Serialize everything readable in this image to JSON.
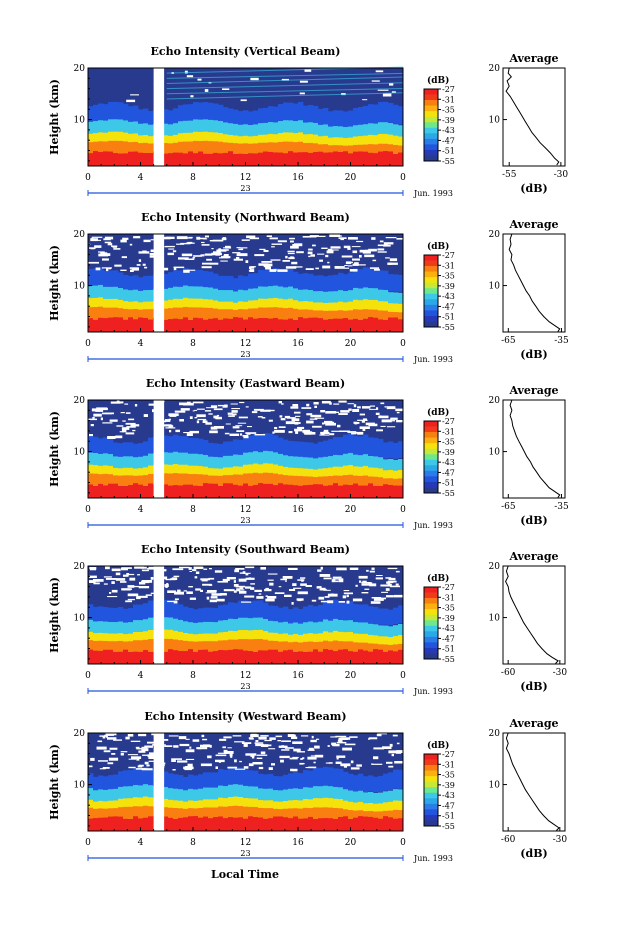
{
  "figure": {
    "xlabel": "Local Time",
    "date_label": "Jun. 1993",
    "date_day": "23",
    "ylabel": "Height (km)",
    "colorbar_unit": "(dB)",
    "avg_title": "Average",
    "avg_xlabel": "(dB)",
    "colors": {
      "red": "#ee2020",
      "orange": "#f98010",
      "yellow": "#f5e10c",
      "cyan": "#3ec8e8",
      "blue": "#2255dd",
      "navy": "#283a8e"
    }
  },
  "chart_data": [
    {
      "type": "heatmap",
      "title": "Echo Intensity (Vertical Beam)",
      "x": {
        "label": "Local Time",
        "ticks": [
          "0",
          "4",
          "8",
          "12",
          "16",
          "20",
          "0"
        ],
        "range": [
          0,
          24
        ],
        "gap": [
          5,
          5.8
        ]
      },
      "y": {
        "label": "Height (km)",
        "ticks": [
          "20",
          "10"
        ],
        "range": [
          1,
          20
        ]
      },
      "colorbar": {
        "unit": "(dB)",
        "ticks": [
          "-27",
          "-31",
          "-35",
          "-39",
          "-43",
          "-47",
          "-51",
          "-55"
        ],
        "range": [
          -55,
          -27
        ]
      },
      "average_profile": {
        "title": "Average",
        "xlabel": "(dB)",
        "xticks": [
          "-55",
          "-30"
        ],
        "xlim": [
          -58,
          -28
        ],
        "yticks": [
          "20",
          "10"
        ],
        "points": [
          [
            -55,
            20
          ],
          [
            -55.5,
            19
          ],
          [
            -54,
            18.3
          ],
          [
            -56,
            17.5
          ],
          [
            -55,
            16.5
          ],
          [
            -56.5,
            15.5
          ],
          [
            -54.5,
            14.5
          ],
          [
            -53,
            13.5
          ],
          [
            -51.5,
            12.5
          ],
          [
            -50,
            11.5
          ],
          [
            -48.5,
            10.5
          ],
          [
            -47,
            9.5
          ],
          [
            -45.5,
            8.5
          ],
          [
            -44,
            7.5
          ],
          [
            -42,
            6.5
          ],
          [
            -40,
            5.5
          ],
          [
            -37.5,
            4.5
          ],
          [
            -35,
            3.5
          ],
          [
            -33,
            2.5
          ],
          [
            -31,
            1.8
          ],
          [
            -32,
            1.2
          ]
        ]
      }
    },
    {
      "type": "heatmap",
      "title": "Echo Intensity (Northward Beam)",
      "x": {
        "label": "Local Time",
        "ticks": [
          "0",
          "4",
          "8",
          "12",
          "16",
          "20",
          "0"
        ],
        "range": [
          0,
          24
        ],
        "gap": [
          5,
          5.8
        ]
      },
      "y": {
        "label": "Height (km)",
        "ticks": [
          "20",
          "10"
        ],
        "range": [
          1,
          20
        ]
      },
      "colorbar": {
        "unit": "(dB)",
        "ticks": [
          "-27",
          "-31",
          "-35",
          "-39",
          "-43",
          "-47",
          "-51",
          "-55"
        ],
        "range": [
          -55,
          -27
        ]
      },
      "average_profile": {
        "title": "Average",
        "xlabel": "(dB)",
        "xticks": [
          "-65",
          "-35"
        ],
        "xlim": [
          -68,
          -33
        ],
        "yticks": [
          "20",
          "10"
        ],
        "points": [
          [
            -63,
            20
          ],
          [
            -64,
            19
          ],
          [
            -63.5,
            18
          ],
          [
            -64.5,
            17
          ],
          [
            -63,
            16
          ],
          [
            -63.5,
            15
          ],
          [
            -62,
            14
          ],
          [
            -61,
            13
          ],
          [
            -59.5,
            12
          ],
          [
            -58,
            11
          ],
          [
            -56.5,
            10
          ],
          [
            -55,
            9
          ],
          [
            -53,
            8
          ],
          [
            -51.5,
            7
          ],
          [
            -49.5,
            6
          ],
          [
            -47.5,
            5
          ],
          [
            -45,
            4
          ],
          [
            -42,
            3
          ],
          [
            -39,
            2.3
          ],
          [
            -36,
            1.6
          ],
          [
            -37,
            1.1
          ]
        ]
      }
    },
    {
      "type": "heatmap",
      "title": "Echo Intensity (Eastward Beam)",
      "x": {
        "label": "Local Time",
        "ticks": [
          "0",
          "4",
          "8",
          "12",
          "16",
          "20",
          "0"
        ],
        "range": [
          0,
          24
        ],
        "gap": [
          5,
          5.8
        ]
      },
      "y": {
        "label": "Height (km)",
        "ticks": [
          "20",
          "10"
        ],
        "range": [
          1,
          20
        ]
      },
      "colorbar": {
        "unit": "(dB)",
        "ticks": [
          "-27",
          "-31",
          "-35",
          "-39",
          "-43",
          "-47",
          "-51",
          "-55"
        ],
        "range": [
          -55,
          -27
        ]
      },
      "average_profile": {
        "title": "Average",
        "xlabel": "(dB)",
        "xticks": [
          "-65",
          "-35"
        ],
        "xlim": [
          -68,
          -33
        ],
        "yticks": [
          "20",
          "10"
        ],
        "points": [
          [
            -63,
            20
          ],
          [
            -64,
            19
          ],
          [
            -63,
            18
          ],
          [
            -64,
            17
          ],
          [
            -63,
            16
          ],
          [
            -62.5,
            15
          ],
          [
            -61.5,
            14
          ],
          [
            -60.5,
            13
          ],
          [
            -59,
            12
          ],
          [
            -57.5,
            11
          ],
          [
            -56,
            10
          ],
          [
            -54.5,
            9
          ],
          [
            -52.5,
            8
          ],
          [
            -51,
            7
          ],
          [
            -49,
            6
          ],
          [
            -47,
            5
          ],
          [
            -44.5,
            4
          ],
          [
            -42,
            3
          ],
          [
            -39,
            2.3
          ],
          [
            -36,
            1.6
          ],
          [
            -37,
            1.1
          ]
        ]
      }
    },
    {
      "type": "heatmap",
      "title": "Echo Intensity (Southward Beam)",
      "x": {
        "label": "Local Time",
        "ticks": [
          "0",
          "4",
          "8",
          "12",
          "16",
          "20",
          "0"
        ],
        "range": [
          0,
          24
        ],
        "gap": [
          5,
          5.8
        ]
      },
      "y": {
        "label": "Height (km)",
        "ticks": [
          "20",
          "10"
        ],
        "range": [
          1,
          20
        ]
      },
      "colorbar": {
        "unit": "(dB)",
        "ticks": [
          "-27",
          "-31",
          "-35",
          "-39",
          "-43",
          "-47",
          "-51",
          "-55"
        ],
        "range": [
          -55,
          -27
        ]
      },
      "average_profile": {
        "title": "Average",
        "xlabel": "(dB)",
        "xticks": [
          "-60",
          "-30"
        ],
        "xlim": [
          -63,
          -27
        ],
        "yticks": [
          "20",
          "10"
        ],
        "points": [
          [
            -60,
            20
          ],
          [
            -61,
            19
          ],
          [
            -60,
            18
          ],
          [
            -61.5,
            17
          ],
          [
            -60,
            16
          ],
          [
            -59.5,
            15
          ],
          [
            -58.5,
            14
          ],
          [
            -57,
            13
          ],
          [
            -55.5,
            12
          ],
          [
            -54,
            11
          ],
          [
            -52.5,
            10
          ],
          [
            -51,
            9
          ],
          [
            -49,
            8
          ],
          [
            -47,
            7
          ],
          [
            -45,
            6
          ],
          [
            -43,
            5
          ],
          [
            -40.5,
            4
          ],
          [
            -37.5,
            3
          ],
          [
            -34.5,
            2.3
          ],
          [
            -31,
            1.6
          ],
          [
            -32.5,
            1.1
          ]
        ]
      }
    },
    {
      "type": "heatmap",
      "title": "Echo Intensity (Westward Beam)",
      "x": {
        "label": "Local Time",
        "ticks": [
          "0",
          "4",
          "8",
          "12",
          "16",
          "20",
          "0"
        ],
        "range": [
          0,
          24
        ],
        "gap": [
          5,
          5.8
        ]
      },
      "y": {
        "label": "Height (km)",
        "ticks": [
          "20",
          "10"
        ],
        "range": [
          1,
          20
        ]
      },
      "colorbar": {
        "unit": "(dB)",
        "ticks": [
          "-27",
          "-31",
          "-35",
          "-39",
          "-43",
          "-47",
          "-51",
          "-55"
        ],
        "range": [
          -55,
          -27
        ]
      },
      "average_profile": {
        "title": "Average",
        "xlabel": "(dB)",
        "xticks": [
          "-60",
          "-30"
        ],
        "xlim": [
          -63,
          -27
        ],
        "yticks": [
          "20",
          "10"
        ],
        "points": [
          [
            -60,
            20
          ],
          [
            -61,
            19
          ],
          [
            -60,
            18
          ],
          [
            -61,
            17
          ],
          [
            -59.5,
            16
          ],
          [
            -58.5,
            15
          ],
          [
            -57.5,
            14
          ],
          [
            -56,
            13
          ],
          [
            -54.5,
            12
          ],
          [
            -53,
            11
          ],
          [
            -51.5,
            10
          ],
          [
            -50,
            9
          ],
          [
            -48,
            8
          ],
          [
            -46,
            7
          ],
          [
            -44,
            6
          ],
          [
            -42,
            5
          ],
          [
            -39.5,
            4
          ],
          [
            -36.5,
            3
          ],
          [
            -33.5,
            2.3
          ],
          [
            -30.5,
            1.6
          ],
          [
            -32,
            1.1
          ]
        ]
      }
    }
  ]
}
